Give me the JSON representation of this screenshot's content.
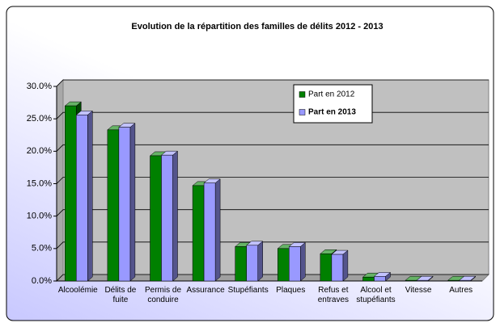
{
  "chart_data": {
    "type": "bar3d",
    "title": "Evolution de la répartition des familles de délits 2012 - 2013",
    "categories": [
      "Alcoolémie",
      "Délits de fuite",
      "Permis de conduire",
      "Assurance",
      "Stupéfiants",
      "Plaques",
      "Refus et entraves",
      "Alcool et stupéfiants",
      "Vitesse",
      "Autres"
    ],
    "series": [
      {
        "name": "Part en 2012",
        "color": "#008000",
        "values": [
          27.0,
          23.3,
          19.3,
          14.7,
          5.3,
          5.0,
          4.2,
          0.6,
          0.1,
          0.1
        ]
      },
      {
        "name": "Part en 2013",
        "color": "#9999ff",
        "values": [
          25.6,
          23.7,
          19.4,
          15.1,
          5.5,
          5.3,
          4.1,
          0.7,
          0.1,
          0.1
        ]
      }
    ],
    "ylim": [
      0,
      30
    ],
    "yticks": [
      {
        "value": 0,
        "label": "0.0%"
      },
      {
        "value": 5,
        "label": "5.0%"
      },
      {
        "value": 10,
        "label": "10.0%"
      },
      {
        "value": 15,
        "label": "15.0%"
      },
      {
        "value": 20,
        "label": "20.0%"
      },
      {
        "value": 25,
        "label": "25.0%"
      },
      {
        "value": 30,
        "label": "30.0%"
      }
    ],
    "grid": true,
    "legend": "top-right"
  }
}
